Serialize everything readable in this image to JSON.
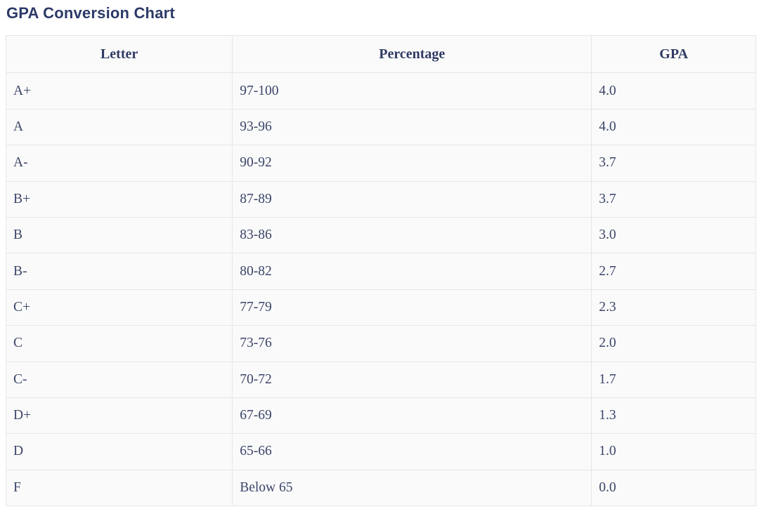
{
  "title": "GPA Conversion Chart",
  "table": {
    "headers": [
      "Letter",
      "Percentage",
      "GPA"
    ],
    "rows": [
      [
        "A+",
        "97-100",
        "4.0"
      ],
      [
        "A",
        "93-96",
        "4.0"
      ],
      [
        "A-",
        "90-92",
        "3.7"
      ],
      [
        "B+",
        "87-89",
        "3.7"
      ],
      [
        "B",
        "83-86",
        "3.0"
      ],
      [
        "B-",
        "80-82",
        "2.7"
      ],
      [
        "C+",
        "77-79",
        "2.3"
      ],
      [
        "C",
        "73-76",
        "2.0"
      ],
      [
        "C-",
        "70-72",
        "1.7"
      ],
      [
        "D+",
        "67-69",
        "1.3"
      ],
      [
        "D",
        "65-66",
        "1.0"
      ],
      [
        "F",
        "Below 65",
        "0.0"
      ]
    ]
  },
  "colors": {
    "title_text": "#2d3a68",
    "header_text": "#2f3a64",
    "cell_text": "#3b4569",
    "cell_background": "#fafafa",
    "border": "#e6e6e6"
  },
  "chart_data": {
    "type": "table",
    "title": "GPA Conversion Chart",
    "columns": [
      "Letter",
      "Percentage",
      "GPA"
    ],
    "rows": [
      {
        "letter": "A+",
        "percentage": "97-100",
        "gpa": 4.0
      },
      {
        "letter": "A",
        "percentage": "93-96",
        "gpa": 4.0
      },
      {
        "letter": "A-",
        "percentage": "90-92",
        "gpa": 3.7
      },
      {
        "letter": "B+",
        "percentage": "87-89",
        "gpa": 3.7
      },
      {
        "letter": "B",
        "percentage": "83-86",
        "gpa": 3.0
      },
      {
        "letter": "B-",
        "percentage": "80-82",
        "gpa": 2.7
      },
      {
        "letter": "C+",
        "percentage": "77-79",
        "gpa": 2.3
      },
      {
        "letter": "C",
        "percentage": "73-76",
        "gpa": 2.0
      },
      {
        "letter": "C-",
        "percentage": "70-72",
        "gpa": 1.7
      },
      {
        "letter": "D+",
        "percentage": "67-69",
        "gpa": 1.3
      },
      {
        "letter": "D",
        "percentage": "65-66",
        "gpa": 1.0
      },
      {
        "letter": "F",
        "percentage": "Below 65",
        "gpa": 0.0
      }
    ]
  }
}
